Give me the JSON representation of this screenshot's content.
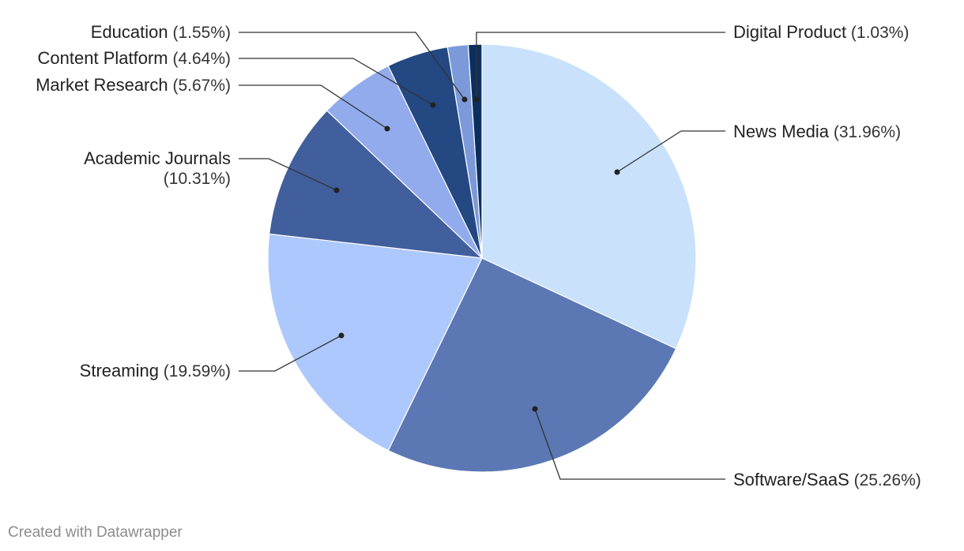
{
  "chart_data": {
    "type": "pie",
    "title": "",
    "slices": [
      {
        "label": "News Media",
        "pct_label": "(31.96%)",
        "value": 31.96,
        "color": "#c9e1fb"
      },
      {
        "label": "Software/SaaS",
        "pct_label": "(25.26%)",
        "value": 25.26,
        "color": "#5b78b4"
      },
      {
        "label": "Streaming",
        "pct_label": "(19.59%)",
        "value": 19.59,
        "color": "#adc8fd"
      },
      {
        "label": "Academic Journals",
        "pct_label": "(10.31%)",
        "value": 10.31,
        "color": "#415f9c"
      },
      {
        "label": "Market Research",
        "pct_label": "(5.67%)",
        "value": 5.67,
        "color": "#91abec"
      },
      {
        "label": "Content Platform",
        "pct_label": "(4.64%)",
        "value": 4.64,
        "color": "#234882"
      },
      {
        "label": "Education",
        "pct_label": "(1.55%)",
        "value": 1.55,
        "color": "#7c9ad9"
      },
      {
        "label": "Digital Product",
        "pct_label": "(1.03%)",
        "value": 1.03,
        "color": "#0b2f5f"
      }
    ]
  },
  "footer": {
    "credit": "Created with Datawrapper"
  }
}
